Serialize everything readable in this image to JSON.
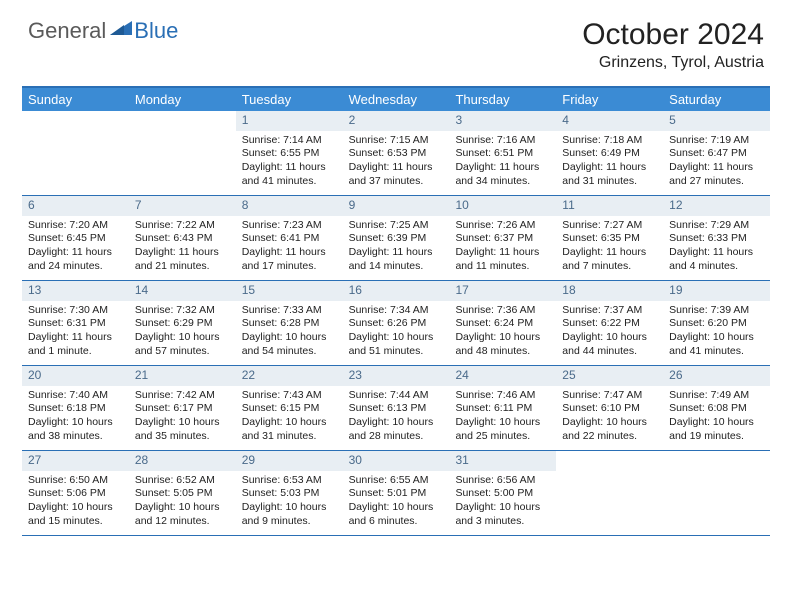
{
  "logo": {
    "general": "General",
    "blue": "Blue"
  },
  "title": "October 2024",
  "location": "Grinzens, Tyrol, Austria",
  "colors": {
    "header_bg": "#3b8bd4",
    "header_text": "#ffffff",
    "border": "#2a6fb5",
    "daynum_bg": "#e8eef3",
    "daynum_text": "#4a6a8a",
    "body_text": "#222222",
    "logo_gray": "#5a5a5a",
    "logo_blue": "#2a6fb5"
  },
  "weekdays": [
    "Sunday",
    "Monday",
    "Tuesday",
    "Wednesday",
    "Thursday",
    "Friday",
    "Saturday"
  ],
  "weeks": [
    [
      null,
      null,
      {
        "n": "1",
        "sunrise": "7:14 AM",
        "sunset": "6:55 PM",
        "daylight": "11 hours and 41 minutes."
      },
      {
        "n": "2",
        "sunrise": "7:15 AM",
        "sunset": "6:53 PM",
        "daylight": "11 hours and 37 minutes."
      },
      {
        "n": "3",
        "sunrise": "7:16 AM",
        "sunset": "6:51 PM",
        "daylight": "11 hours and 34 minutes."
      },
      {
        "n": "4",
        "sunrise": "7:18 AM",
        "sunset": "6:49 PM",
        "daylight": "11 hours and 31 minutes."
      },
      {
        "n": "5",
        "sunrise": "7:19 AM",
        "sunset": "6:47 PM",
        "daylight": "11 hours and 27 minutes."
      }
    ],
    [
      {
        "n": "6",
        "sunrise": "7:20 AM",
        "sunset": "6:45 PM",
        "daylight": "11 hours and 24 minutes."
      },
      {
        "n": "7",
        "sunrise": "7:22 AM",
        "sunset": "6:43 PM",
        "daylight": "11 hours and 21 minutes."
      },
      {
        "n": "8",
        "sunrise": "7:23 AM",
        "sunset": "6:41 PM",
        "daylight": "11 hours and 17 minutes."
      },
      {
        "n": "9",
        "sunrise": "7:25 AM",
        "sunset": "6:39 PM",
        "daylight": "11 hours and 14 minutes."
      },
      {
        "n": "10",
        "sunrise": "7:26 AM",
        "sunset": "6:37 PM",
        "daylight": "11 hours and 11 minutes."
      },
      {
        "n": "11",
        "sunrise": "7:27 AM",
        "sunset": "6:35 PM",
        "daylight": "11 hours and 7 minutes."
      },
      {
        "n": "12",
        "sunrise": "7:29 AM",
        "sunset": "6:33 PM",
        "daylight": "11 hours and 4 minutes."
      }
    ],
    [
      {
        "n": "13",
        "sunrise": "7:30 AM",
        "sunset": "6:31 PM",
        "daylight": "11 hours and 1 minute."
      },
      {
        "n": "14",
        "sunrise": "7:32 AM",
        "sunset": "6:29 PM",
        "daylight": "10 hours and 57 minutes."
      },
      {
        "n": "15",
        "sunrise": "7:33 AM",
        "sunset": "6:28 PM",
        "daylight": "10 hours and 54 minutes."
      },
      {
        "n": "16",
        "sunrise": "7:34 AM",
        "sunset": "6:26 PM",
        "daylight": "10 hours and 51 minutes."
      },
      {
        "n": "17",
        "sunrise": "7:36 AM",
        "sunset": "6:24 PM",
        "daylight": "10 hours and 48 minutes."
      },
      {
        "n": "18",
        "sunrise": "7:37 AM",
        "sunset": "6:22 PM",
        "daylight": "10 hours and 44 minutes."
      },
      {
        "n": "19",
        "sunrise": "7:39 AM",
        "sunset": "6:20 PM",
        "daylight": "10 hours and 41 minutes."
      }
    ],
    [
      {
        "n": "20",
        "sunrise": "7:40 AM",
        "sunset": "6:18 PM",
        "daylight": "10 hours and 38 minutes."
      },
      {
        "n": "21",
        "sunrise": "7:42 AM",
        "sunset": "6:17 PM",
        "daylight": "10 hours and 35 minutes."
      },
      {
        "n": "22",
        "sunrise": "7:43 AM",
        "sunset": "6:15 PM",
        "daylight": "10 hours and 31 minutes."
      },
      {
        "n": "23",
        "sunrise": "7:44 AM",
        "sunset": "6:13 PM",
        "daylight": "10 hours and 28 minutes."
      },
      {
        "n": "24",
        "sunrise": "7:46 AM",
        "sunset": "6:11 PM",
        "daylight": "10 hours and 25 minutes."
      },
      {
        "n": "25",
        "sunrise": "7:47 AM",
        "sunset": "6:10 PM",
        "daylight": "10 hours and 22 minutes."
      },
      {
        "n": "26",
        "sunrise": "7:49 AM",
        "sunset": "6:08 PM",
        "daylight": "10 hours and 19 minutes."
      }
    ],
    [
      {
        "n": "27",
        "sunrise": "6:50 AM",
        "sunset": "5:06 PM",
        "daylight": "10 hours and 15 minutes."
      },
      {
        "n": "28",
        "sunrise": "6:52 AM",
        "sunset": "5:05 PM",
        "daylight": "10 hours and 12 minutes."
      },
      {
        "n": "29",
        "sunrise": "6:53 AM",
        "sunset": "5:03 PM",
        "daylight": "10 hours and 9 minutes."
      },
      {
        "n": "30",
        "sunrise": "6:55 AM",
        "sunset": "5:01 PM",
        "daylight": "10 hours and 6 minutes."
      },
      {
        "n": "31",
        "sunrise": "6:56 AM",
        "sunset": "5:00 PM",
        "daylight": "10 hours and 3 minutes."
      },
      null,
      null
    ]
  ],
  "labels": {
    "sunrise": "Sunrise:",
    "sunset": "Sunset:",
    "daylight": "Daylight:"
  }
}
